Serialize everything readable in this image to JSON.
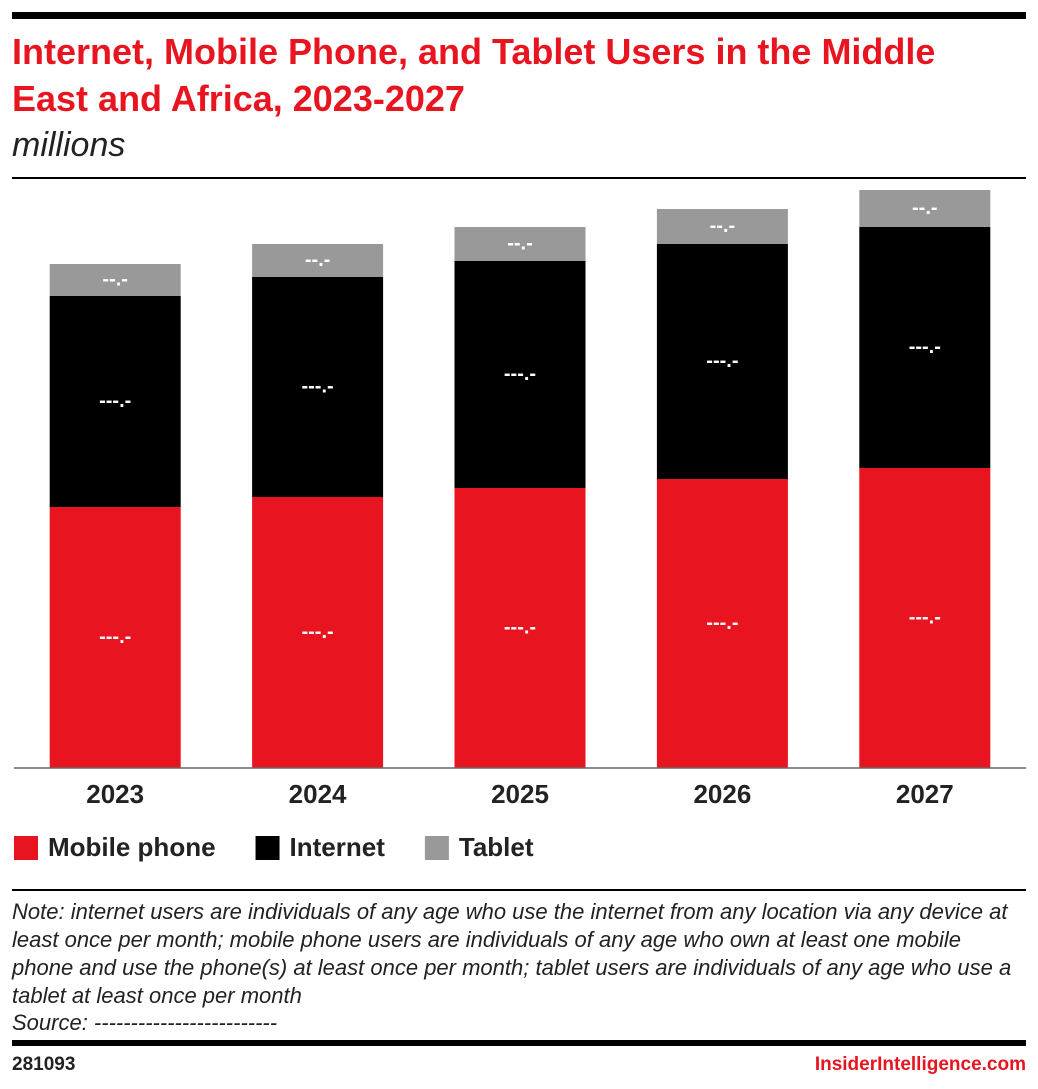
{
  "chart_data": {
    "type": "bar",
    "stacked": true,
    "title": "Internet, Mobile Phone, and Tablet Users in the Middle East and Africa, 2023-2027",
    "subtitle": "millions",
    "categories": [
      "2023",
      "2024",
      "2025",
      "2026",
      "2027"
    ],
    "ylim": [
      0,
      1470
    ],
    "series": [
      {
        "name": "Mobile phone",
        "color": "#e8141f",
        "values": [
          652.5,
          677.5,
          700,
          722.5,
          750
        ],
        "value_labels": [
          "---.-",
          "---.-",
          "---.-",
          "---.-",
          "---.-"
        ]
      },
      {
        "name": "Internet",
        "color": "#000000",
        "values": [
          527.5,
          550,
          567.5,
          587.5,
          602.5
        ],
        "value_labels": [
          "---.-",
          "---.-",
          "---.-",
          "---.-",
          "---.-"
        ]
      },
      {
        "name": "Tablet",
        "color": "#999999",
        "values": [
          80,
          82.5,
          85,
          87.5,
          92.5
        ],
        "value_labels": [
          "--.-",
          "--.-",
          "--.-",
          "--.-",
          "--.-"
        ]
      }
    ],
    "note": "Note: internet users are individuals of any age who use the internet from any location via any device at least once per month; mobile phone users are individuals of any age who own at least one mobile phone and use the phone(s) at least once per month; tablet users are individuals of any age who use a tablet at least once per month",
    "source": "Source: -------------------------",
    "chart_id": "281093",
    "brand": "InsiderIntelligence.com"
  }
}
